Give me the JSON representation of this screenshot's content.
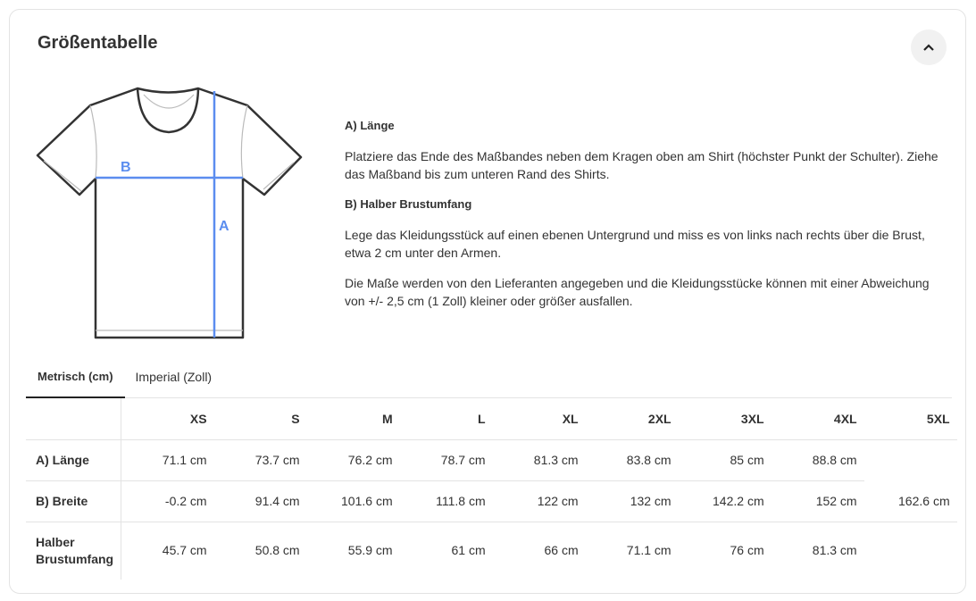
{
  "title": "Größentabelle",
  "collapse_icon": "chevron-up-icon",
  "diagram": {
    "label_a": "A",
    "label_b": "B",
    "accent": "#5b8def"
  },
  "info": {
    "a_title": "A) Länge",
    "a_text": "Platziere das Ende des Maßbandes neben dem Kragen oben am Shirt (höchster Punkt der Schulter). Ziehe das Maßband bis zum unteren Rand des Shirts.",
    "b_title": "B) Halber Brustumfang",
    "b_text": "Lege das Kleidungsstück auf einen ebenen Untergrund und miss es von links nach rechts über die Brust, etwa 2 cm unter den Armen.",
    "note": "Die Maße werden von den Lieferanten angegeben und die Kleidungsstücke können mit einer Abweichung von +/- 2,5 cm (1 Zoll) kleiner oder größer ausfallen."
  },
  "tabs": [
    {
      "label": "Metrisch (cm)",
      "active": true
    },
    {
      "label": "Imperial (Zoll)",
      "active": false
    }
  ],
  "table": {
    "sizes": [
      "XS",
      "S",
      "M",
      "L",
      "XL",
      "2XL",
      "3XL",
      "4XL",
      "5XL"
    ],
    "rows": [
      {
        "label": "A) Länge",
        "values": [
          "71.1 cm",
          "73.7 cm",
          "76.2 cm",
          "78.7 cm",
          "81.3 cm",
          "83.8 cm",
          "85 cm",
          "88.8 cm",
          ""
        ]
      },
      {
        "label": "B) Breite",
        "values": [
          "-0.2 cm",
          "91.4 cm",
          "101.6 cm",
          "111.8 cm",
          "122 cm",
          "132 cm",
          "142.2 cm",
          "152 cm",
          "162.6 cm"
        ]
      },
      {
        "label": "Halber Brustumfang",
        "values": [
          "45.7 cm",
          "50.8 cm",
          "55.9 cm",
          "61 cm",
          "66 cm",
          "71.1 cm",
          "76 cm",
          "81.3 cm",
          ""
        ]
      }
    ]
  }
}
